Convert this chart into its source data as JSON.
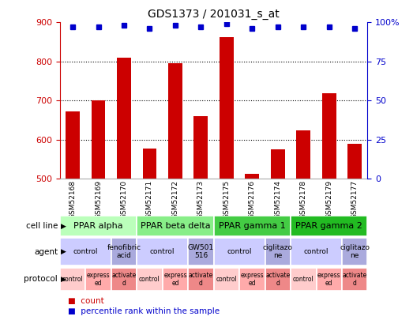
{
  "title": "GDS1373 / 201031_s_at",
  "samples": [
    "GSM52168",
    "GSM52169",
    "GSM52170",
    "GSM52171",
    "GSM52172",
    "GSM52173",
    "GSM52175",
    "GSM52176",
    "GSM52174",
    "GSM52178",
    "GSM52179",
    "GSM52177"
  ],
  "counts": [
    672,
    700,
    810,
    578,
    795,
    660,
    863,
    512,
    576,
    624,
    718,
    590
  ],
  "percentile_ranks": [
    97,
    97,
    98,
    96,
    98,
    97,
    99,
    96,
    97,
    97,
    97,
    96
  ],
  "ylim": [
    500,
    900
  ],
  "y_ticks_left": [
    500,
    600,
    700,
    800,
    900
  ],
  "y_ticks_right": [
    0,
    25,
    50,
    75,
    100
  ],
  "bar_color": "#cc0000",
  "dot_color": "#0000cc",
  "cell_lines": [
    {
      "label": "PPAR alpha",
      "start": 0,
      "end": 3,
      "color": "#bbffbb"
    },
    {
      "label": "PPAR beta delta",
      "start": 3,
      "end": 6,
      "color": "#88ee88"
    },
    {
      "label": "PPAR gamma 1",
      "start": 6,
      "end": 9,
      "color": "#44cc44"
    },
    {
      "label": "PPAR gamma 2",
      "start": 9,
      "end": 12,
      "color": "#22bb22"
    }
  ],
  "agents": [
    {
      "label": "control",
      "start": 0,
      "end": 2,
      "color": "#ccccff"
    },
    {
      "label": "fenofibric\nacid",
      "start": 2,
      "end": 3,
      "color": "#aaaadd"
    },
    {
      "label": "control",
      "start": 3,
      "end": 5,
      "color": "#ccccff"
    },
    {
      "label": "GW501\n516",
      "start": 5,
      "end": 6,
      "color": "#aaaadd"
    },
    {
      "label": "control",
      "start": 6,
      "end": 8,
      "color": "#ccccff"
    },
    {
      "label": "ciglitazo\nne",
      "start": 8,
      "end": 9,
      "color": "#aaaadd"
    },
    {
      "label": "control",
      "start": 9,
      "end": 11,
      "color": "#ccccff"
    },
    {
      "label": "ciglitazo\nne",
      "start": 11,
      "end": 12,
      "color": "#aaaadd"
    }
  ],
  "protocols": [
    {
      "label": "control",
      "start": 0,
      "end": 1,
      "color": "#ffcccc"
    },
    {
      "label": "express\ned",
      "start": 1,
      "end": 2,
      "color": "#ffaaaa"
    },
    {
      "label": "activate\nd",
      "start": 2,
      "end": 3,
      "color": "#ee8888"
    },
    {
      "label": "control",
      "start": 3,
      "end": 4,
      "color": "#ffcccc"
    },
    {
      "label": "express\ned",
      "start": 4,
      "end": 5,
      "color": "#ffaaaa"
    },
    {
      "label": "activate\nd",
      "start": 5,
      "end": 6,
      "color": "#ee8888"
    },
    {
      "label": "control",
      "start": 6,
      "end": 7,
      "color": "#ffcccc"
    },
    {
      "label": "express\ned",
      "start": 7,
      "end": 8,
      "color": "#ffaaaa"
    },
    {
      "label": "activate\nd",
      "start": 8,
      "end": 9,
      "color": "#ee8888"
    },
    {
      "label": "control",
      "start": 9,
      "end": 10,
      "color": "#ffcccc"
    },
    {
      "label": "express\ned",
      "start": 10,
      "end": 11,
      "color": "#ffaaaa"
    },
    {
      "label": "activate\nd",
      "start": 11,
      "end": 12,
      "color": "#ee8888"
    }
  ],
  "background_color": "#ffffff",
  "tick_color_left": "#cc0000",
  "tick_color_right": "#0000cc"
}
